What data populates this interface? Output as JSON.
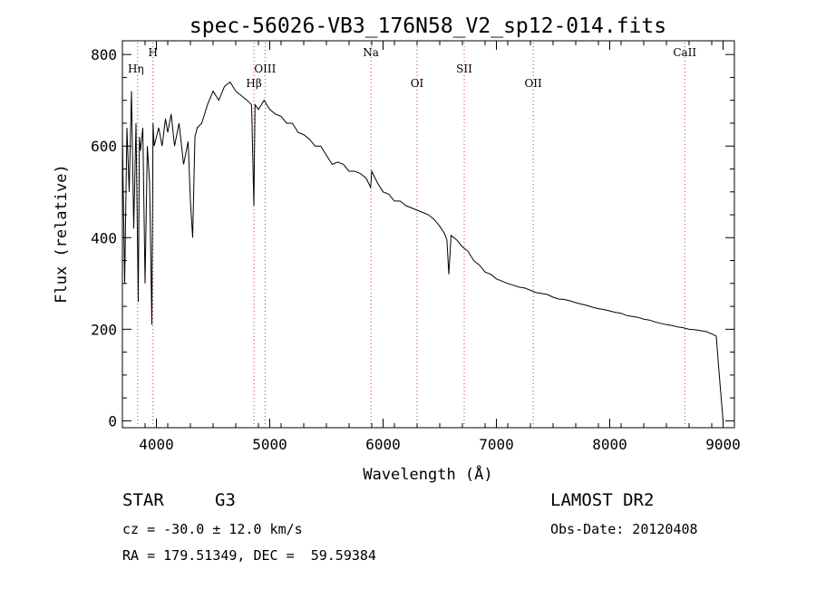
{
  "chart_data": {
    "type": "line",
    "title": "spec-56026-VB3_176N58_V2_sp12-014.fits",
    "xlabel": "Wavelength (Å)",
    "ylabel": "Flux (relative)",
    "xlim": [
      3700,
      9100
    ],
    "ylim": [
      -15,
      830
    ],
    "x_ticks": [
      4000,
      5000,
      6000,
      7000,
      8000,
      9000
    ],
    "y_ticks": [
      0,
      200,
      400,
      600,
      800
    ],
    "grid": false,
    "series": [
      {
        "x": [
          3700,
          3720,
          3740,
          3760,
          3780,
          3800,
          3820,
          3840,
          3850,
          3860,
          3880,
          3900,
          3920,
          3940,
          3960,
          3970,
          3980,
          4000,
          4020,
          4050,
          4080,
          4100,
          4130,
          4160,
          4200,
          4240,
          4280,
          4300,
          4320,
          4340,
          4360,
          4400,
          4450,
          4500,
          4550,
          4600,
          4650,
          4700,
          4750,
          4800,
          4840,
          4860,
          4870,
          4900,
          4950,
          5000,
          5050,
          5100,
          5150,
          5200,
          5250,
          5300,
          5350,
          5400,
          5450,
          5500,
          5550,
          5600,
          5650,
          5700,
          5750,
          5800,
          5850,
          5890,
          5900,
          5950,
          6000,
          6050,
          6100,
          6150,
          6200,
          6250,
          6300,
          6350,
          6400,
          6450,
          6500,
          6540,
          6563,
          6580,
          6600,
          6650,
          6700,
          6750,
          6800,
          6850,
          6900,
          6950,
          7000,
          7050,
          7100,
          7150,
          7200,
          7250,
          7300,
          7350,
          7400,
          7450,
          7500,
          7550,
          7600,
          7650,
          7700,
          7750,
          7800,
          7850,
          7900,
          7950,
          8000,
          8050,
          8100,
          8150,
          8200,
          8250,
          8300,
          8350,
          8400,
          8450,
          8500,
          8550,
          8600,
          8650,
          8700,
          8750,
          8800,
          8850,
          8900,
          8940,
          8960,
          8980,
          9000
        ],
        "y": [
          620,
          300,
          640,
          500,
          720,
          420,
          650,
          260,
          620,
          590,
          640,
          300,
          600,
          520,
          210,
          650,
          600,
          620,
          640,
          600,
          660,
          630,
          670,
          600,
          650,
          560,
          610,
          480,
          400,
          620,
          640,
          650,
          690,
          720,
          700,
          730,
          740,
          720,
          710,
          700,
          690,
          470,
          690,
          680,
          700,
          680,
          670,
          665,
          650,
          650,
          630,
          625,
          615,
          600,
          600,
          580,
          560,
          565,
          560,
          545,
          545,
          540,
          530,
          510,
          545,
          520,
          500,
          495,
          480,
          480,
          470,
          465,
          460,
          455,
          450,
          440,
          425,
          410,
          395,
          320,
          405,
          395,
          380,
          370,
          350,
          340,
          325,
          320,
          310,
          305,
          300,
          296,
          292,
          290,
          285,
          280,
          278,
          276,
          270,
          266,
          265,
          262,
          258,
          255,
          252,
          248,
          245,
          243,
          240,
          237,
          235,
          230,
          228,
          226,
          222,
          220,
          216,
          213,
          210,
          208,
          205,
          203,
          200,
          199,
          197,
          195,
          190,
          185,
          120,
          60,
          0
        ]
      }
    ],
    "annotations": {
      "lines": [
        {
          "label": "Hη",
          "x": 3835
        },
        {
          "label": "H",
          "x": 3970
        },
        {
          "label": "Hβ",
          "x": 4861
        },
        {
          "label": "OIII",
          "x": 4959
        },
        {
          "label": "Na",
          "x": 5893
        },
        {
          "label": "OI",
          "x": 6300
        },
        {
          "label": "SII",
          "x": 6716
        },
        {
          "label": "OII",
          "x": 7325
        },
        {
          "label": "CaII",
          "x": 8662
        }
      ]
    }
  },
  "info": {
    "object_type": "STAR",
    "subclass": "G3",
    "survey": "LAMOST DR2",
    "velocity": "cz = -30.0 ± 12.0 km/s",
    "obs_date": "Obs-Date: 20120408",
    "coords": "RA = 179.51349, DEC =  59.59384"
  }
}
